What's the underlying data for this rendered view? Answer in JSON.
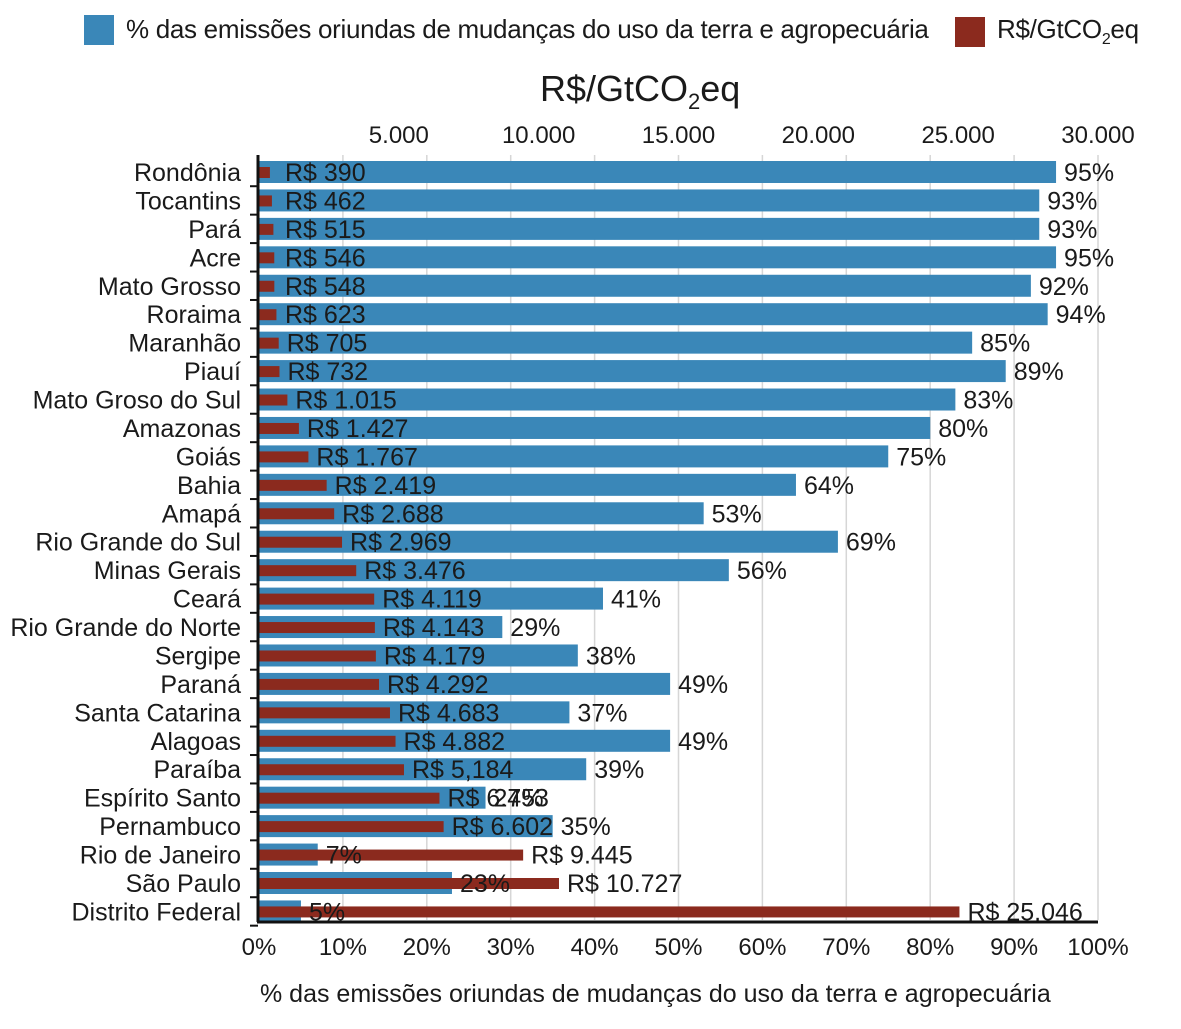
{
  "legend": {
    "share_label": "% das emissões oriundas de mudanças do uso da terra e agropecuária",
    "cost_label_main": "R$/GtCO",
    "cost_label_sub": "2",
    "cost_label_tail": "eq"
  },
  "colors": {
    "share": "#3a87b8",
    "cost": "#8b2a1e",
    "axis": "#111111",
    "grid": "#d6d6d6"
  },
  "chart_data": {
    "type": "bar",
    "orientation": "horizontal",
    "categories": [
      "Rondônia",
      "Tocantins",
      "Pará",
      "Acre",
      "Mato Grosso",
      "Roraima",
      "Maranhão",
      "Piauí",
      "Mato Groso do Sul",
      "Amazonas",
      "Goiás",
      "Bahia",
      "Amapá",
      "Rio Grande do Sul",
      "Minas Gerais",
      "Ceará",
      "Rio Grande do Norte",
      "Sergipe",
      "Paraná",
      "Santa Catarina",
      "Alagoas",
      "Paraíba",
      "Espírito Santo",
      "Pernambuco",
      "Rio de Janeiro",
      "São Paulo",
      "Distrito Federal"
    ],
    "series": [
      {
        "name": "% das emissões oriundas de mudanças do uso da terra e agropecuária",
        "axis": "bottom",
        "values": [
          95,
          93,
          93,
          95,
          92,
          94,
          85,
          89,
          83,
          80,
          75,
          64,
          53,
          69,
          56,
          41,
          29,
          38,
          49,
          37,
          49,
          39,
          27,
          35,
          7,
          23,
          5
        ],
        "labels": [
          "95%",
          "93%",
          "93%",
          "95%",
          "92%",
          "94%",
          "85%",
          "89%",
          "83%",
          "80%",
          "75%",
          "64%",
          "53%",
          "69%",
          "56%",
          "41%",
          "29%",
          "38%",
          "49%",
          "37%",
          "49%",
          "39%",
          "27%",
          "35%",
          "7%",
          "23%",
          "5%"
        ]
      },
      {
        "name": "R$/GtCO2eq",
        "axis": "top",
        "values": [
          390,
          462,
          515,
          546,
          548,
          623,
          705,
          732,
          1015,
          1427,
          1767,
          2419,
          2688,
          2969,
          3476,
          4119,
          4143,
          4179,
          4292,
          4683,
          4882,
          5184,
          6453,
          6602,
          9445,
          10727,
          25046
        ],
        "labels": [
          "R$ 390",
          "R$ 462",
          "R$ 515",
          "R$ 546",
          "R$ 548",
          "R$ 623",
          "R$ 705",
          "R$ 732",
          "R$ 1.015",
          "R$ 1.427",
          "R$ 1.767",
          "R$ 2.419",
          "R$ 2.688",
          "R$ 2.969",
          "R$ 3.476",
          "R$ 4.119",
          "R$ 4.143",
          "R$ 4.179",
          "R$ 4.292",
          "R$ 4.683",
          "R$ 4.882",
          "R$ 5,184",
          "R$ 6.453",
          "R$ 6.602",
          "R$ 9.445",
          "R$ 10.727",
          "R$ 25.046"
        ]
      }
    ],
    "x_bottom": {
      "label": "% das emissões oriundas de mudanças do uso da terra e agropecuária",
      "lim": [
        0,
        100
      ],
      "ticks": [
        0,
        10,
        20,
        30,
        40,
        50,
        60,
        70,
        80,
        90,
        100
      ],
      "tick_labels": [
        "0%",
        "10%",
        "20%",
        "30%",
        "40%",
        "50%",
        "60%",
        "70%",
        "80%",
        "90%",
        "100%"
      ]
    },
    "x_top": {
      "label_main": "R$/GtCO",
      "label_sub": "2",
      "label_tail": "eq",
      "lim": [
        0,
        30000
      ],
      "ticks": [
        5000,
        10000,
        15000,
        20000,
        25000,
        30000
      ],
      "tick_labels": [
        "5.000",
        "10.000",
        "15.000",
        "20.000",
        "25.000",
        "30.000"
      ]
    },
    "grid": true,
    "legend_position": "top"
  }
}
